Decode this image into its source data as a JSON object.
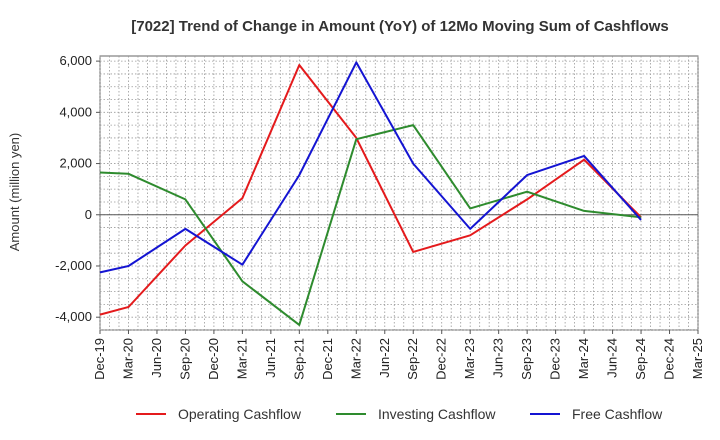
{
  "chart_data": {
    "type": "line",
    "title": "[7022]  Trend of Change in Amount (YoY) of 12Mo Moving Sum of Cashflows",
    "xlabel": "",
    "ylabel": "Amount (million yen)",
    "categories": [
      "Dec-19",
      "Mar-20",
      "Jun-20",
      "Sep-20",
      "Dec-20",
      "Mar-21",
      "Jun-21",
      "Sep-21",
      "Dec-21",
      "Mar-22",
      "Jun-22",
      "Sep-22",
      "Dec-22",
      "Mar-23",
      "Jun-23",
      "Sep-23",
      "Dec-23",
      "Mar-24",
      "Jun-24",
      "Sep-24",
      "Dec-24",
      "Mar-25"
    ],
    "ylim": [
      -4500,
      6200
    ],
    "yticks": [
      -4000,
      -2000,
      0,
      2000,
      4000,
      6000
    ],
    "ytick_labels": [
      "-4,000",
      "-2,000",
      "0",
      "2,000",
      "4,000",
      "6,000"
    ],
    "grid": true,
    "legend_position": "bottom",
    "series": [
      {
        "name": "Operating Cashflow",
        "color": "#e41a1c",
        "values": [
          -3900,
          -3600,
          null,
          -1200,
          null,
          650,
          null,
          5850,
          null,
          3000,
          null,
          -1450,
          null,
          -800,
          null,
          600,
          null,
          2150,
          null,
          -100,
          null,
          null
        ]
      },
      {
        "name": "Investing Cashflow",
        "color": "#2e8b2e",
        "values": [
          1650,
          1600,
          null,
          600,
          null,
          -2600,
          null,
          -4300,
          null,
          2950,
          null,
          3500,
          null,
          250,
          null,
          900,
          null,
          150,
          null,
          -100,
          null,
          null
        ]
      },
      {
        "name": "Free Cashflow",
        "color": "#1414d2",
        "values": [
          -2250,
          -2000,
          null,
          -550,
          null,
          -1950,
          null,
          1550,
          null,
          5950,
          null,
          2000,
          null,
          -550,
          null,
          1550,
          null,
          2300,
          null,
          -200,
          null,
          null
        ]
      }
    ]
  }
}
